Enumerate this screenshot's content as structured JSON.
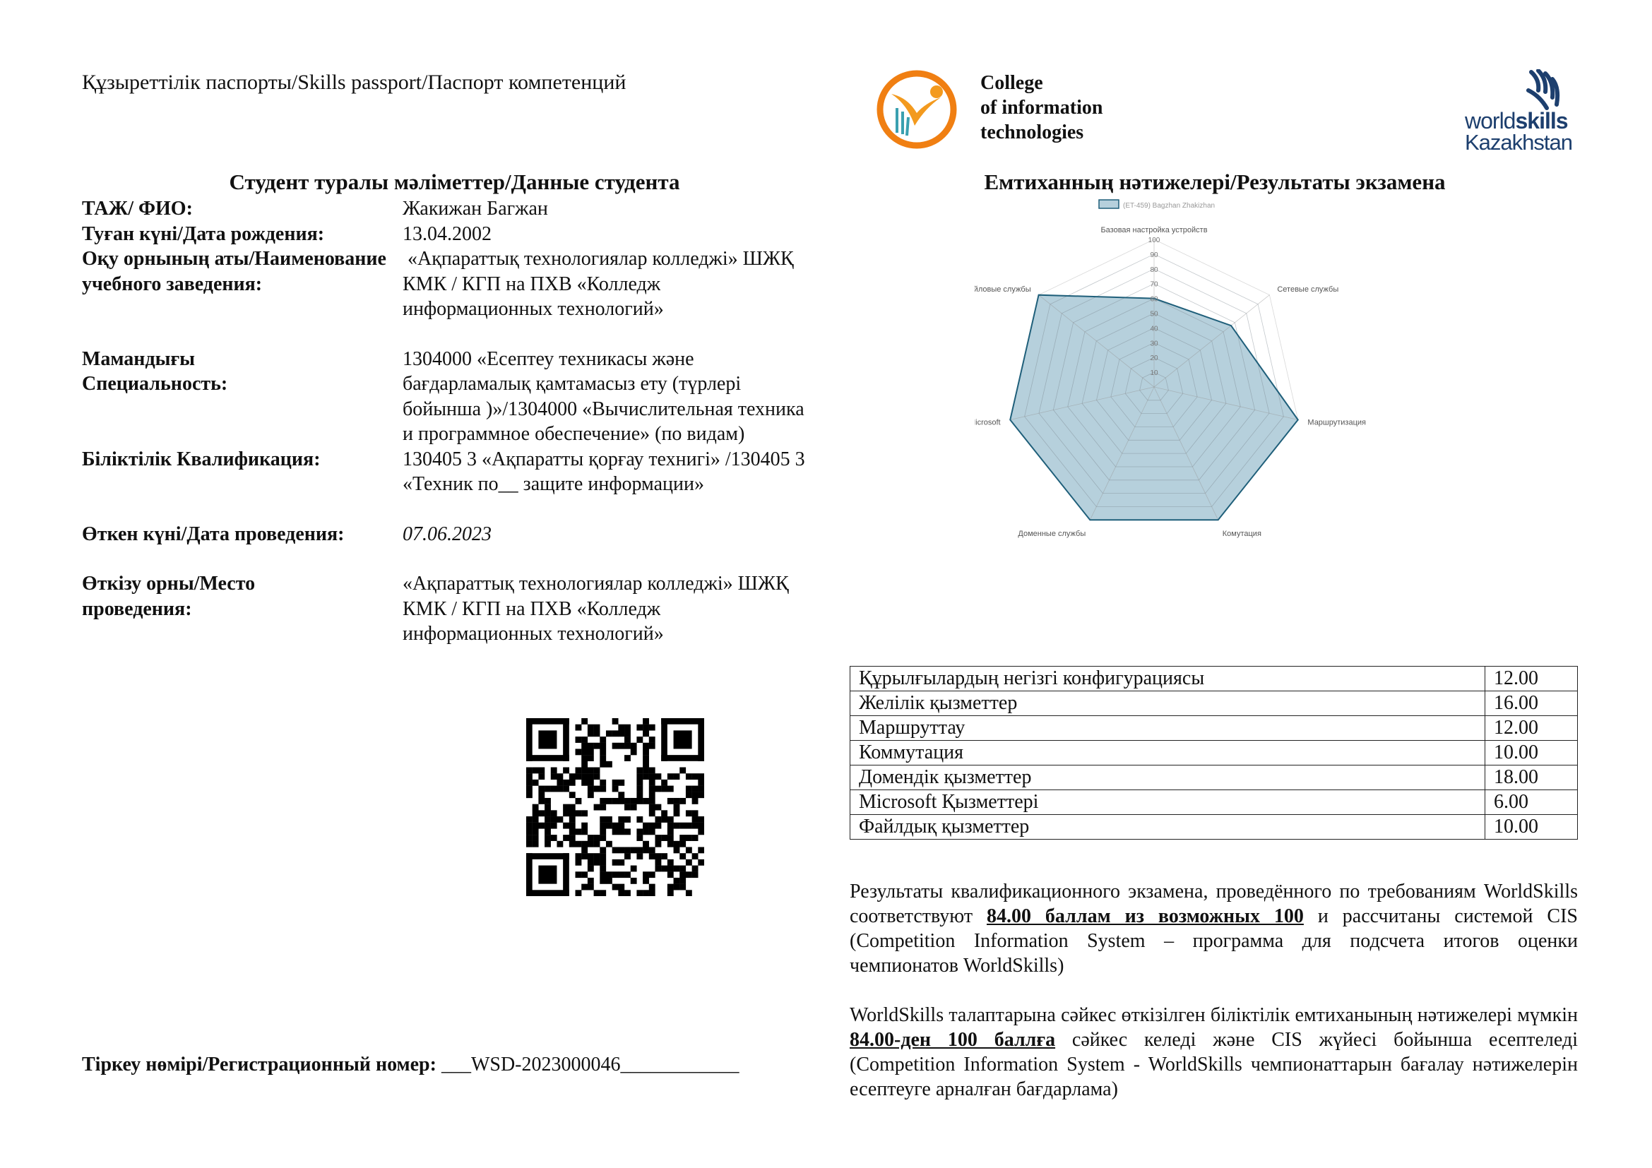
{
  "header": {
    "doc_title": "Құзыреттілік паспорты/Skills passport/Паспорт компетенций",
    "college_logo_text": [
      "College",
      "of information",
      "technologies"
    ],
    "worldskills_logo_text": [
      "world",
      "skills",
      "Kazakhstan"
    ]
  },
  "student": {
    "section_title": "Студент туралы мәліметтер/Данные студента",
    "fields": [
      {
        "label": "ТАЖ/ ФИО:",
        "value": "Жакижан Багжан"
      },
      {
        "label": "Туған күні/Дата рождения:",
        "value": "13.04.2002"
      },
      {
        "label": "Оқу орнының аты/Наименование учебного заведения:",
        "value": " «Ақпараттық технологиялар колледжі» ШЖҚ КМК / КГП на ПХВ «Колледж информационных технологий»"
      },
      {
        "label": "Мамандығы Специальность:",
        "value": "1304000 «Есептеу техникасы және бағдарламалық қамтамасыз ету (түрлері бойынша )»/1304000 «Вычислительная техника и программное  обеспечение» (по видам)"
      },
      {
        "label": "Біліктілік Квалификация:",
        "value": "130405 3 «Ақпаратты қорғау технигі» /130405 3 «Техник по__ защите информации»"
      },
      {
        "label": "Өткен күні/Дата проведения:",
        "value": "07.06.2023"
      },
      {
        "label": "Өткізу орны/Место проведения:",
        "value": "«Ақпараттық технологиялар колледжі» ШЖҚ КМК / КГП на ПХВ «Колледж информационных технологий»"
      }
    ],
    "registration_label": "Тіркеу нөмірі/Регистрационный номер: ",
    "registration_value": "___WSD-2023000046____________"
  },
  "results": {
    "section_title": "Емтиханның нәтижелері/Результаты экзамена",
    "table": [
      {
        "module": "Құрылғылардың негізгі конфигурациясы",
        "score": "12.00"
      },
      {
        "module": "Желілік қызметтер",
        "score": "16.00"
      },
      {
        "module": "Маршруттау",
        "score": "12.00"
      },
      {
        "module": "Коммутация",
        "score": "10.00"
      },
      {
        "module": "Домендік қызметтер",
        "score": "18.00"
      },
      {
        "module": "Microsoft Қызметтері",
        "score": "6.00"
      },
      {
        "module": "Файлдық қызметтер",
        "score": "10.00"
      }
    ],
    "para_ru": {
      "pre": "Результаты квалификационного экзамена, проведённого по требованиям WorldSkills соответствуют ",
      "bold": "84.00 баллам из возможных 100",
      "post": " и рассчитаны системой CIS (Competition Information System – программа для подсчета итогов оценки чемпионатов WorldSkills)"
    },
    "para_kz": {
      "pre": "WorldSkills талаптарына сәйкес өткізілген біліктілік емтиханының нәтижелері мүмкін ",
      "bold": "84.00-ден 100 баллға",
      "post": " сәйкес келеді және CIS жүйесі бойынша есептеледі (Competition Information System - WorldSkills чемпионаттарын бағалау нәтижелерін есептеуге арналған бағдарлама)"
    }
  },
  "chart_data": {
    "type": "radar",
    "categories": [
      "Базовая настройка устройств",
      "Сетевые службы",
      "Маршрутизация",
      "Комутация",
      "Доменные службы",
      "Службы Microsoft",
      "Файловые службы"
    ],
    "series": [
      {
        "name": "(ET-459) Bagzhan Zhakizhan",
        "values": [
          60,
          66.7,
          100,
          100,
          100,
          100,
          100
        ]
      }
    ],
    "rlim": [
      0,
      100
    ],
    "ticks": [
      "10",
      "20",
      "30",
      "40",
      "50",
      "60",
      "70",
      "80",
      "90",
      "100"
    ],
    "legend": "top",
    "colors": {
      "fill": "#b6d0dc",
      "stroke": "#1f5f7a",
      "grid": "#d8d8d8"
    }
  }
}
